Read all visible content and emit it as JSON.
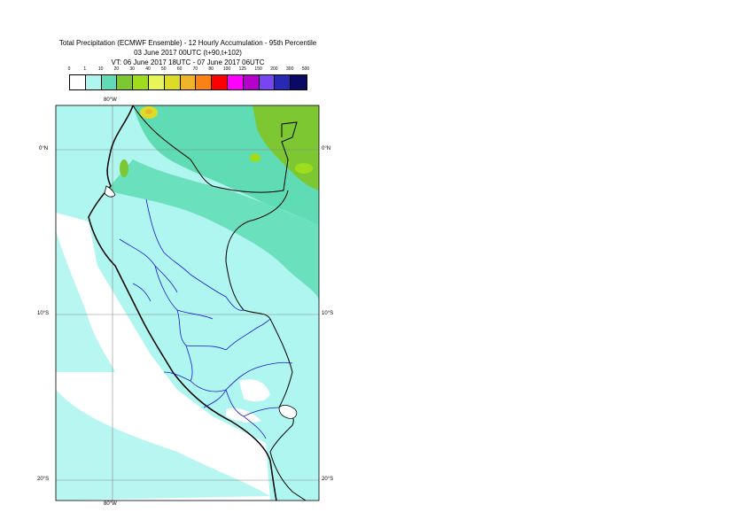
{
  "title": {
    "line1": "Total Precipitation (ECMWF Ensemble) - 12 Hourly Accumulation - 95th Percentile",
    "line2": "03 June 2017 00UTC (t+90,t+102)",
    "line3": "VT: 06 June 2017 18UTC - 07 June 2017 06UTC"
  },
  "legend": {
    "labels": [
      "0",
      "1",
      "10",
      "20",
      "30",
      "40",
      "50",
      "60",
      "70",
      "80",
      "100",
      "125",
      "150",
      "200",
      "300",
      "500"
    ],
    "colors": [
      "#ffffff",
      "#aff5f0",
      "#5fdcb4",
      "#7dc832",
      "#a0dc1e",
      "#e6f55a",
      "#dcdc28",
      "#f0b428",
      "#fa8214",
      "#ff0000",
      "#ff00ff",
      "#b400c8",
      "#7846f0",
      "#2828b4",
      "#0a0a64"
    ]
  },
  "axes": {
    "top_lon": "80°W",
    "bottom_lon": "80°W",
    "lat_0_left": "0°N",
    "lat_0_right": "0°N",
    "lat_10_left": "10°S",
    "lat_10_right": "10°S",
    "lat_20_left": "20°S",
    "lat_20_right": "20°S"
  }
}
